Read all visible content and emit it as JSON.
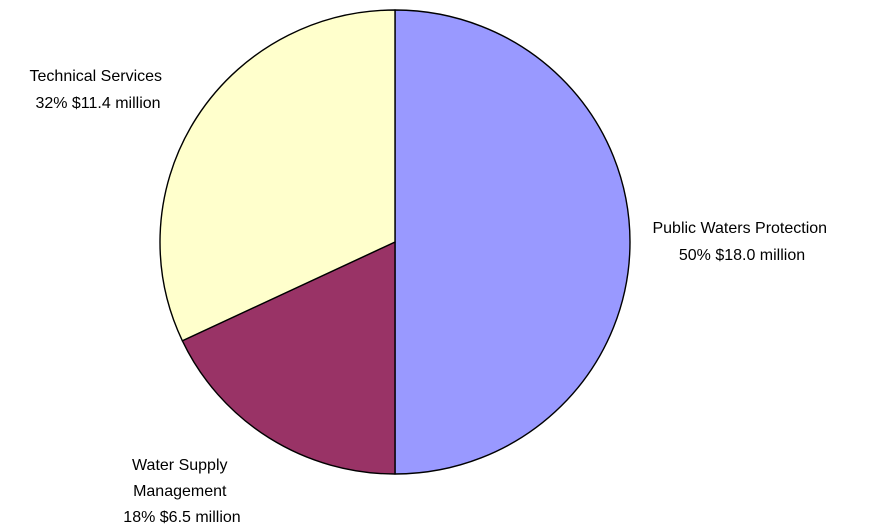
{
  "chart_data": {
    "type": "pie",
    "title": "",
    "start_angle_deg": 0,
    "direction": "clockwise",
    "slices": [
      {
        "name": "Public Waters Protection",
        "label_lines": [
          "Public Waters Protection",
          "50% $18.0 million"
        ],
        "percent": 50,
        "value_millions": 18.0,
        "color": "#9999FF"
      },
      {
        "name": "Water Supply Management",
        "label_lines": [
          "Water Supply",
          "Management",
          "18% $6.5 million"
        ],
        "percent": 18,
        "value_millions": 6.5,
        "color": "#993366"
      },
      {
        "name": "Technical Services",
        "label_lines": [
          "Technical Services",
          "32% $11.4 million"
        ],
        "percent": 32,
        "value_millions": 11.4,
        "color": "#FFFFCC"
      }
    ]
  }
}
